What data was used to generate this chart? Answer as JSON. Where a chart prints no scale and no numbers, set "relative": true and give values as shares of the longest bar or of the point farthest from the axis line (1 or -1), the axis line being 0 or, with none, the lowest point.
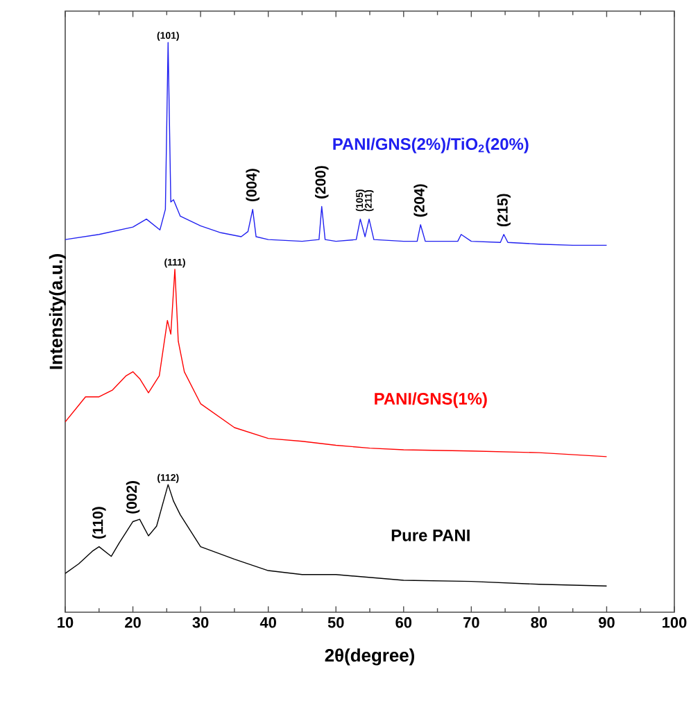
{
  "chart_data": {
    "type": "line",
    "relative": true,
    "xlabel": "2θ(degree)",
    "ylabel": "Intensity(a.u.)",
    "xlim": [
      10,
      100
    ],
    "xticks": [
      10,
      20,
      30,
      40,
      50,
      60,
      70,
      80,
      90,
      100
    ],
    "tick_labels": "x",
    "legend": false,
    "grid": false,
    "series": [
      {
        "name": "PANI/GNS(2%)/TiO$_{2}$(20%)",
        "color": "#2020f0",
        "x": [
          10,
          15,
          20,
          22,
          24,
          24.8,
          25.2,
          25.6,
          26,
          27,
          30,
          33,
          36,
          37,
          37.7,
          38.2,
          40,
          45,
          47.5,
          47.9,
          48.4,
          50,
          53,
          53.6,
          54.3,
          54.9,
          55.6,
          60,
          62,
          62.5,
          63.2,
          68,
          68.5,
          70,
          74.3,
          74.8,
          75.4,
          80,
          85,
          90
        ],
        "values": [
          0.654,
          0.663,
          0.676,
          0.69,
          0.671,
          0.707,
          1.0,
          0.72,
          0.724,
          0.695,
          0.678,
          0.666,
          0.659,
          0.668,
          0.707,
          0.659,
          0.654,
          0.651,
          0.654,
          0.712,
          0.654,
          0.651,
          0.654,
          0.69,
          0.659,
          0.69,
          0.654,
          0.651,
          0.651,
          0.68,
          0.651,
          0.651,
          0.663,
          0.651,
          0.649,
          0.663,
          0.649,
          0.646,
          0.644,
          0.644
        ]
      },
      {
        "name": "PANI/GNS(1%)",
        "color": "#ff0000",
        "x": [
          10,
          13,
          15,
          17,
          19,
          20,
          21,
          22.3,
          23.9,
          25.1,
          25.6,
          26.2,
          26.7,
          27.6,
          30,
          35,
          40,
          45,
          50,
          55,
          60,
          70,
          80,
          90
        ],
        "values": [
          0.334,
          0.378,
          0.378,
          0.39,
          0.415,
          0.422,
          0.41,
          0.385,
          0.415,
          0.512,
          0.488,
          0.602,
          0.476,
          0.422,
          0.366,
          0.324,
          0.305,
          0.3,
          0.293,
          0.288,
          0.285,
          0.283,
          0.28,
          0.273
        ]
      },
      {
        "name": "Pure PANI",
        "color": "#000000",
        "x": [
          10,
          12,
          14,
          15,
          16.8,
          18,
          20,
          21,
          22.3,
          23.5,
          25.2,
          26,
          27,
          30,
          35,
          40,
          45,
          50,
          60,
          70,
          80,
          90
        ],
        "values": [
          0.068,
          0.085,
          0.107,
          0.115,
          0.098,
          0.122,
          0.159,
          0.163,
          0.134,
          0.151,
          0.224,
          0.195,
          0.171,
          0.115,
          0.093,
          0.073,
          0.066,
          0.066,
          0.056,
          0.054,
          0.049,
          0.046
        ]
      }
    ],
    "annotations": [
      {
        "text": "(101)",
        "x": 25.2,
        "y": 1.0
      },
      {
        "text": "(004)",
        "x": 37.7,
        "y": 0.707
      },
      {
        "text": "(200)",
        "x": 47.9,
        "y": 0.712
      },
      {
        "text": "(105)",
        "x": 53.6,
        "y": 0.69
      },
      {
        "text": "(211)",
        "x": 54.9,
        "y": 0.69
      },
      {
        "text": "(204)",
        "x": 62.5,
        "y": 0.68
      },
      {
        "text": "(215)",
        "x": 74.8,
        "y": 0.663
      },
      {
        "text": "(111)",
        "x": 26.2,
        "y": 0.602
      },
      {
        "text": "(110)",
        "x": 15,
        "y": 0.115
      },
      {
        "text": "(002)",
        "x": 20,
        "y": 0.159
      },
      {
        "text": "(112)",
        "x": 25.2,
        "y": 0.224
      }
    ]
  }
}
